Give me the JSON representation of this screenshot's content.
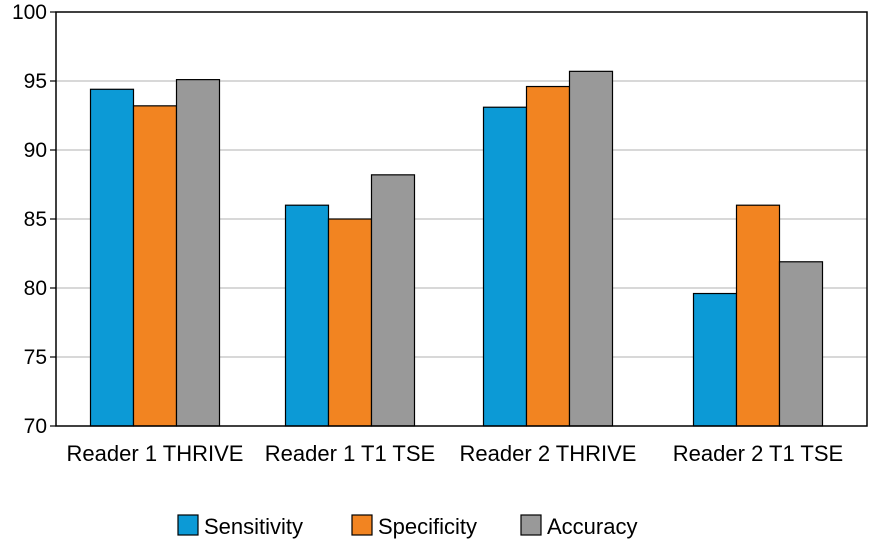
{
  "chart_data": {
    "type": "bar",
    "categories": [
      "Reader 1 THRIVE",
      "Reader 1 T1 TSE",
      "Reader 2 THRIVE",
      "Reader 2 T1 TSE"
    ],
    "series": [
      {
        "name": "Sensitivity",
        "color": "#0c9ad6",
        "values": [
          94.4,
          86.0,
          93.1,
          79.6
        ]
      },
      {
        "name": "Specificity",
        "color": "#f28421",
        "values": [
          93.2,
          85.0,
          94.6,
          86.0
        ]
      },
      {
        "name": "Accuracy",
        "color": "#999999",
        "values": [
          95.1,
          88.2,
          95.7,
          81.9
        ]
      }
    ],
    "ylim": [
      70,
      100
    ],
    "yticks": [
      70,
      75,
      80,
      85,
      90,
      95,
      100
    ],
    "grid": true,
    "legend": "bottom",
    "title": "",
    "xlabel": "",
    "ylabel": ""
  }
}
